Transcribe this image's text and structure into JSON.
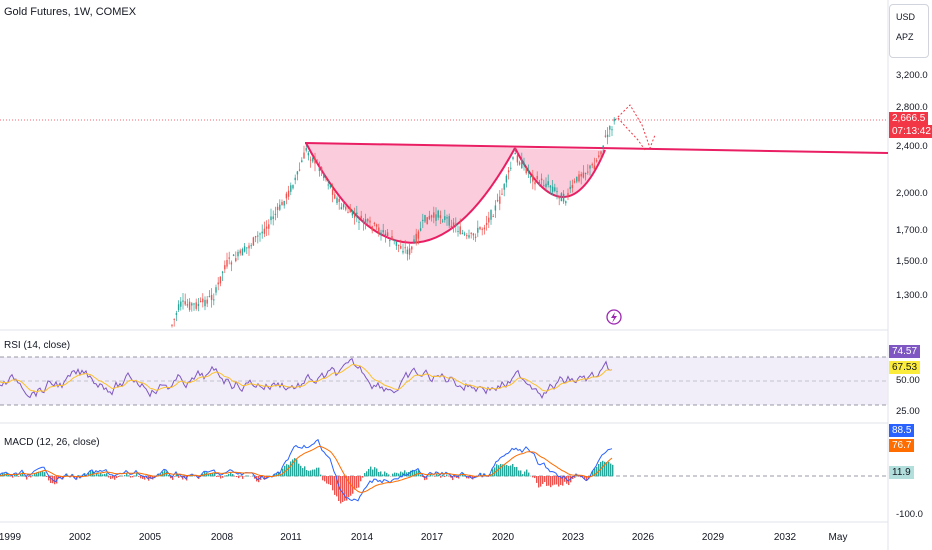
{
  "header": {
    "title": "Gold Futures, 1W, COMEX"
  },
  "scale_controls": {
    "currency": "USD",
    "mode": "APZ"
  },
  "price_axis": {
    "ticks": [
      "3,200.0",
      "2,800.0",
      "2,400.0",
      "2,000.0",
      "1,700.0",
      "1,500.0",
      "1,300.0"
    ]
  },
  "price_badge": {
    "value": "2,666.5",
    "timer": "07:13:42",
    "color": "#f23645"
  },
  "rsi": {
    "label": "RSI (14, close)",
    "value": "74.57",
    "ma_value": "67.53",
    "levels": [
      "50.00",
      "25.00"
    ],
    "colors": {
      "rsi": "#7e57c2",
      "ma": "#fbc02d"
    }
  },
  "macd": {
    "label": "MACD (12, 26, close)",
    "macd_value": "88.5",
    "signal_value": "76.7",
    "hist_value": "11.9",
    "min_label": "-100.0",
    "colors": {
      "macd": "#2962ff",
      "signal": "#ff6d00",
      "hist_pos": "#26a69a",
      "hist_neg": "#ef5350"
    }
  },
  "time_axis": {
    "ticks": [
      "1999",
      "2002",
      "2005",
      "2008",
      "2011",
      "2014",
      "2017",
      "2020",
      "2023",
      "2026",
      "2029",
      "2032",
      "May"
    ]
  },
  "pattern": {
    "name": "cup-and-handle",
    "fill": "#f8bbd0",
    "line": "#e91e63"
  },
  "icons": {
    "lightning": "lightning-icon"
  }
}
